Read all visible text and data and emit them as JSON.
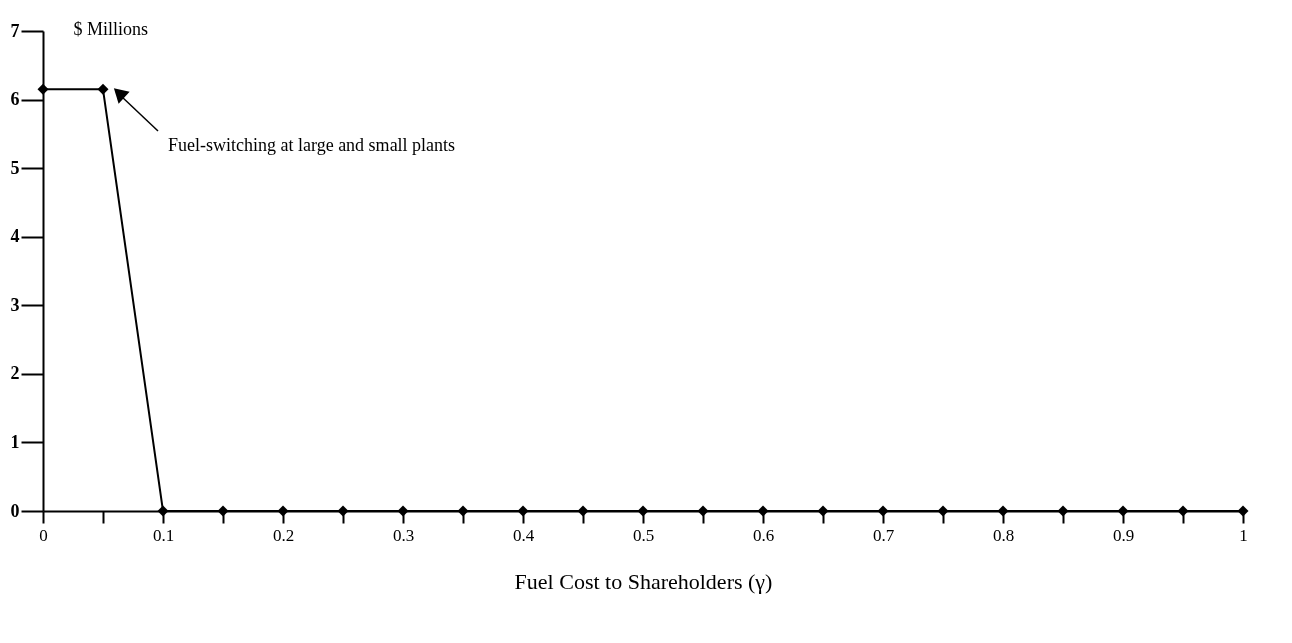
{
  "chart_data": {
    "type": "line",
    "xlabel": "Fuel Cost to Shareholders (γ)",
    "ylabel": "$ Millions",
    "x": [
      0,
      0.05,
      0.1,
      0.15,
      0.2,
      0.25,
      0.3,
      0.35,
      0.4,
      0.45,
      0.5,
      0.55,
      0.6,
      0.65,
      0.7,
      0.75,
      0.8,
      0.85,
      0.9,
      0.95,
      1
    ],
    "series": [
      {
        "color": "#000000",
        "values": [
          6.15,
          6.15,
          0,
          0,
          0,
          0,
          0,
          0,
          0,
          0,
          0,
          0,
          0,
          0,
          0,
          0,
          0,
          0,
          0,
          0,
          0
        ]
      }
    ],
    "xlim": [
      0,
      1
    ],
    "ylim": [
      0,
      7
    ],
    "xticks": [
      0,
      {
        "value": 0.05,
        "label": null
      },
      0.1,
      {
        "value": 0.15,
        "label": null
      },
      0.2,
      {
        "value": 0.25,
        "label": null
      },
      0.3,
      {
        "value": 0.35,
        "label": null
      },
      0.4,
      {
        "value": 0.45,
        "label": null
      },
      0.5,
      {
        "value": 0.55,
        "label": null
      },
      0.6,
      {
        "value": 0.65,
        "label": null
      },
      0.7,
      {
        "value": 0.75,
        "label": null
      },
      0.8,
      {
        "value": 0.85,
        "label": null
      },
      0.9,
      {
        "value": 0.95,
        "label": null
      },
      1
    ],
    "yticks": [
      0,
      1,
      2,
      3,
      4,
      5,
      6,
      7
    ],
    "marker": "diamond",
    "line_style": "solid",
    "grid": false,
    "annotations": [
      "Fuel-switching at large and small plants"
    ]
  }
}
